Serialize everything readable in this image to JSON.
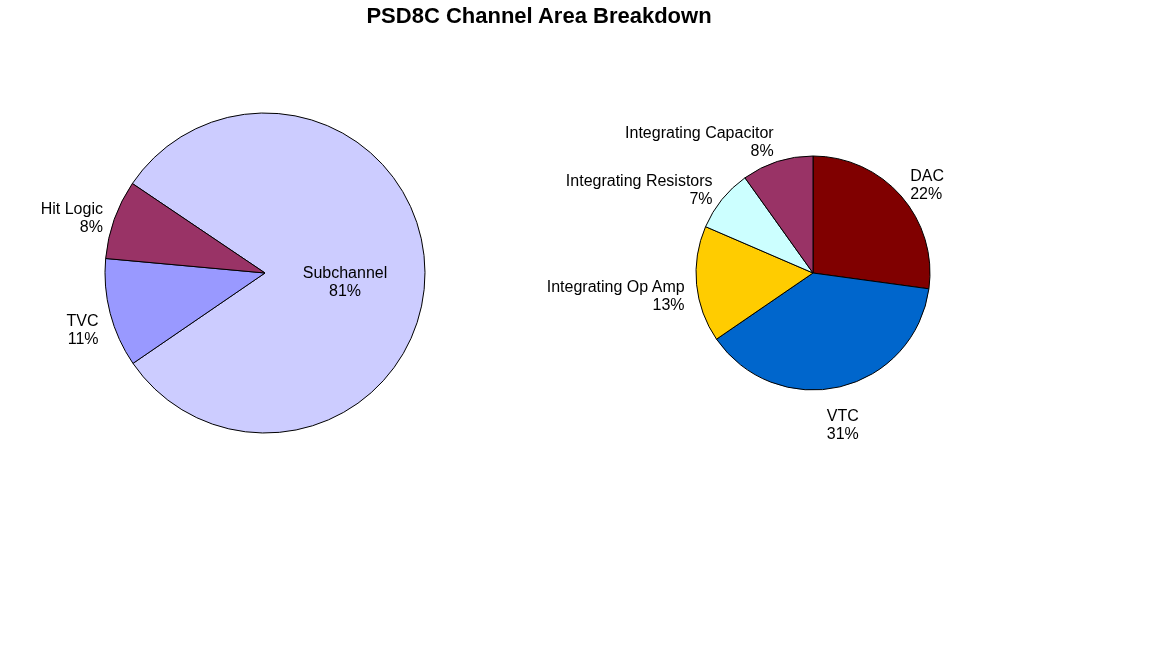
{
  "chart_data": [
    {
      "type": "pie",
      "title": "PSD8C Channel Area Breakdown",
      "categories": [
        "Subchannel",
        "TVC",
        "Hit Logic"
      ],
      "values": [
        81,
        11,
        8
      ],
      "value_labels": [
        "81%",
        "11%",
        "8%"
      ],
      "colors": [
        "#ccccff",
        "#9999ff",
        "#993366"
      ],
      "legend": false
    },
    {
      "type": "pie",
      "categories": [
        "DAC",
        "VTC",
        "Integrating Op Amp",
        "Integrating Resistors",
        "Integrating Capacitor"
      ],
      "values": [
        22,
        31,
        13,
        7,
        8
      ],
      "value_labels": [
        "22%",
        "31%",
        "13%",
        "7%",
        "8%"
      ],
      "colors": [
        "#800000",
        "#0066cc",
        "#ffcc00",
        "#ccffff",
        "#993366"
      ],
      "legend": false
    }
  ]
}
